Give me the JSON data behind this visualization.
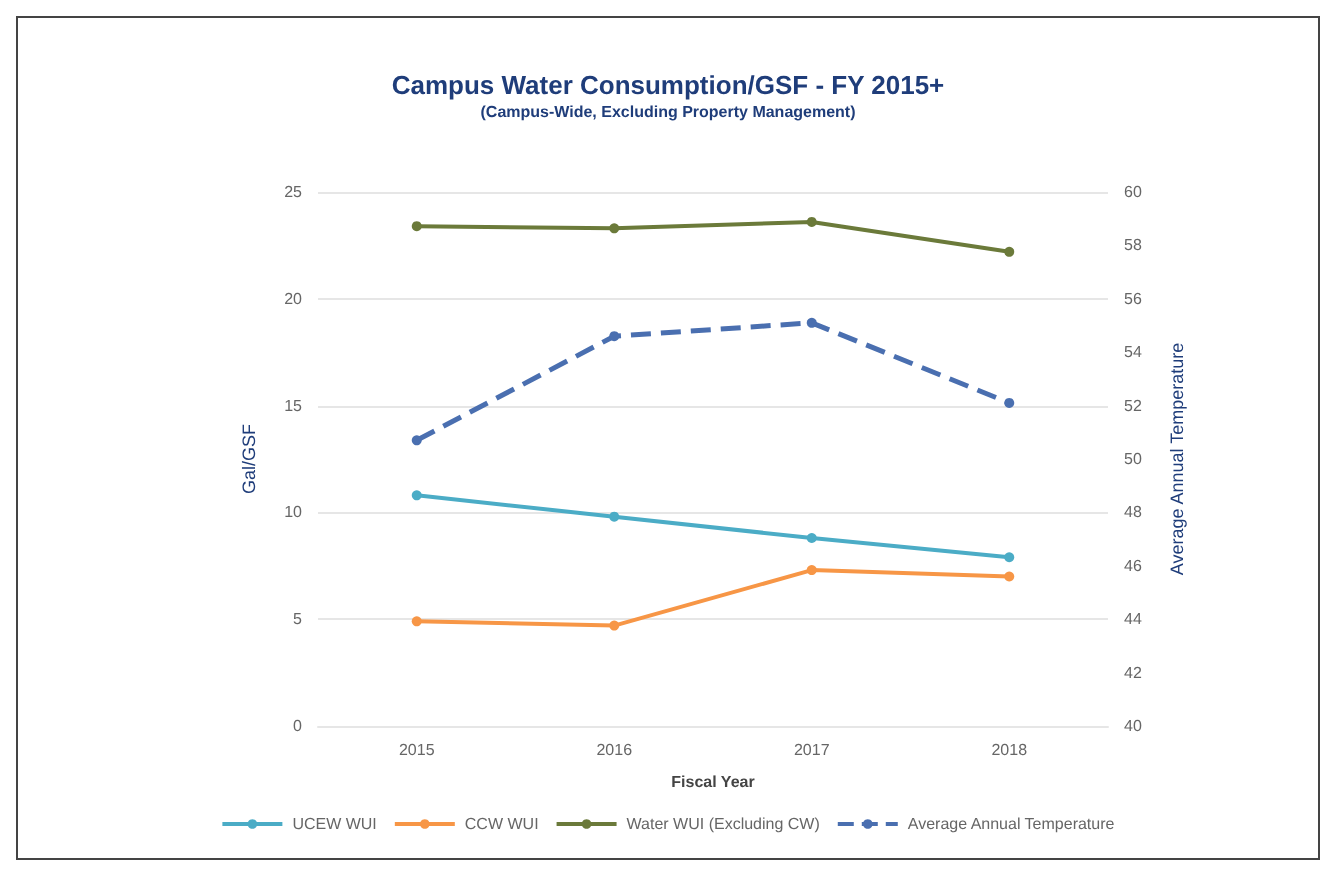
{
  "chart_data": {
    "type": "line",
    "title": "Campus Water Consumption/GSF - FY 2015+",
    "subtitle": "(Campus-Wide, Excluding Property Management)",
    "xlabel": "Fiscal Year",
    "ylabel": "Gal/GSF",
    "y2label": "Average Annual Temperature",
    "categories": [
      "2015",
      "2016",
      "2017",
      "2018"
    ],
    "series": [
      {
        "name": "UCEW WUI",
        "color": "#4bacc6",
        "values": [
          10.8,
          9.8,
          8.8,
          7.9
        ]
      },
      {
        "name": "CCW WUI",
        "color": "#f79646",
        "values": [
          4.9,
          4.7,
          7.3,
          7.0
        ]
      },
      {
        "name": "Water WUI (Excluding CW)",
        "color": "#6b7a3a",
        "values": [
          23.4,
          23.3,
          23.6,
          22.2
        ]
      },
      {
        "name": "Average Annual Temperature",
        "color": "#4a6fb0",
        "values": [
          50.7,
          54.6,
          55.1,
          52.1
        ],
        "axis": "y2",
        "line_style": "dashed"
      }
    ],
    "ylim": [
      0,
      25
    ],
    "yticks": [
      0,
      5,
      10,
      15,
      20,
      25
    ],
    "y2lim": [
      40,
      60
    ],
    "y2ticks": [
      40,
      42,
      44,
      46,
      48,
      50,
      52,
      54,
      56,
      58,
      60
    ],
    "grid": "y",
    "legend": "bottom",
    "marker": "circle"
  }
}
